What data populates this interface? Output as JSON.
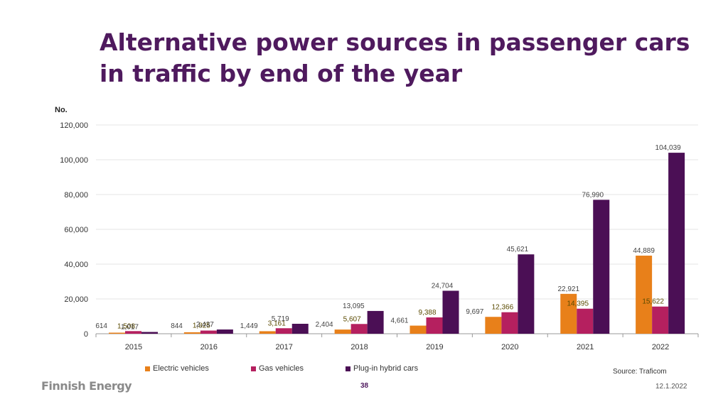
{
  "slide": {
    "title_line1": "Alternative power sources in passenger cars",
    "title_line2": "in traffic by end of the year",
    "source": "Source: Traficom",
    "logo_text": "Finnish Energy",
    "page_number": "38",
    "date": "12.1.2022"
  },
  "colors": {
    "title": "#4f1a5e",
    "electric": "#e8801a",
    "gas": "#b5205f",
    "plugin": "#4b0f55"
  },
  "chart_data": {
    "type": "bar",
    "title": "Alternative power sources in passenger cars in traffic by end of the year",
    "ylabel": "No.",
    "xlabel": "",
    "ylim": [
      0,
      120000
    ],
    "yticks": [
      0,
      20000,
      40000,
      60000,
      80000,
      100000,
      120000
    ],
    "ytick_labels": [
      "0",
      "20,000",
      "40,000",
      "60,000",
      "80,000",
      "100,000",
      "120,000"
    ],
    "categories": [
      "2015",
      "2016",
      "2017",
      "2018",
      "2019",
      "2020",
      "2021",
      "2022"
    ],
    "series": [
      {
        "name": "Electric vehicles",
        "key": "electric",
        "values": [
          614,
          844,
          1449,
          2404,
          4661,
          9697,
          22921,
          44889
        ],
        "labels": [
          "614",
          "844",
          "1,449",
          "2,404",
          "4,661",
          "9,697",
          "22,921",
          "44,889"
        ]
      },
      {
        "name": "Gas vehicles",
        "key": "gas",
        "values": [
          1508,
          1825,
          3161,
          5607,
          9388,
          12366,
          14395,
          15622
        ],
        "labels": [
          "1,508",
          "1,825",
          "3,161",
          "5,607",
          "9,388",
          "12,366",
          "14,395",
          "15,622"
        ]
      },
      {
        "name": "Plug-in hybrid cars",
        "key": "plugin",
        "values": [
          1017,
          2437,
          5719,
          13095,
          24704,
          45621,
          76990,
          104039
        ],
        "labels": [
          "1,017",
          "2,437",
          "5,719",
          "13,095",
          "24,704",
          "45,621",
          "76,990",
          "104,039"
        ]
      }
    ],
    "legend_position": "bottom",
    "grid": true
  }
}
